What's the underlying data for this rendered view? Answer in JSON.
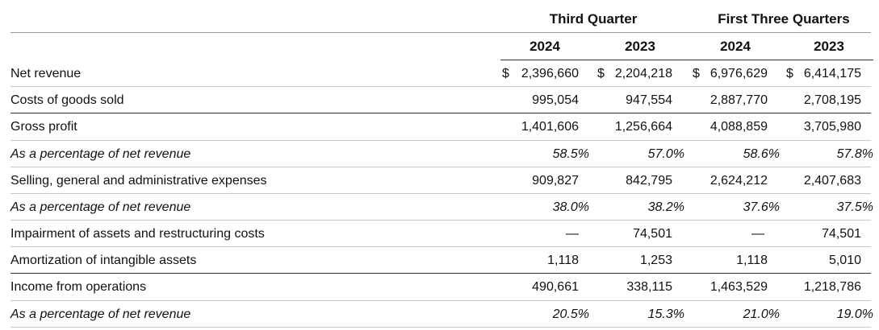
{
  "header": {
    "group1": "Third Quarter",
    "group2": "First Three Quarters",
    "years": [
      "2024",
      "2023",
      "2024",
      "2023"
    ]
  },
  "currency_symbol": "$",
  "rows": [
    {
      "label": "Net revenue",
      "values": [
        "2,396,660",
        "2,204,218",
        "6,976,629",
        "6,414,175"
      ]
    },
    {
      "label": "Costs of goods sold",
      "values": [
        "995,054",
        "947,554",
        "2,887,770",
        "2,708,195"
      ]
    },
    {
      "label": "Gross profit",
      "values": [
        "1,401,606",
        "1,256,664",
        "4,088,859",
        "3,705,980"
      ]
    },
    {
      "label": "As a percentage of net revenue",
      "values": [
        "58.5%",
        "57.0%",
        "58.6%",
        "57.8%"
      ]
    },
    {
      "label": "Selling, general and administrative expenses",
      "values": [
        "909,827",
        "842,795",
        "2,624,212",
        "2,407,683"
      ]
    },
    {
      "label": "As a percentage of net revenue",
      "values": [
        "38.0%",
        "38.2%",
        "37.6%",
        "37.5%"
      ]
    },
    {
      "label": "Impairment of assets and restructuring costs",
      "values": [
        "—",
        "74,501",
        "—",
        "74,501"
      ]
    },
    {
      "label": "Amortization of intangible assets",
      "values": [
        "1,118",
        "1,253",
        "1,118",
        "5,010"
      ]
    },
    {
      "label": "Income from operations",
      "values": [
        "490,661",
        "338,115",
        "1,463,529",
        "1,218,786"
      ]
    },
    {
      "label": "As a percentage of net revenue",
      "values": [
        "20.5%",
        "15.3%",
        "21.0%",
        "19.0%"
      ]
    }
  ]
}
